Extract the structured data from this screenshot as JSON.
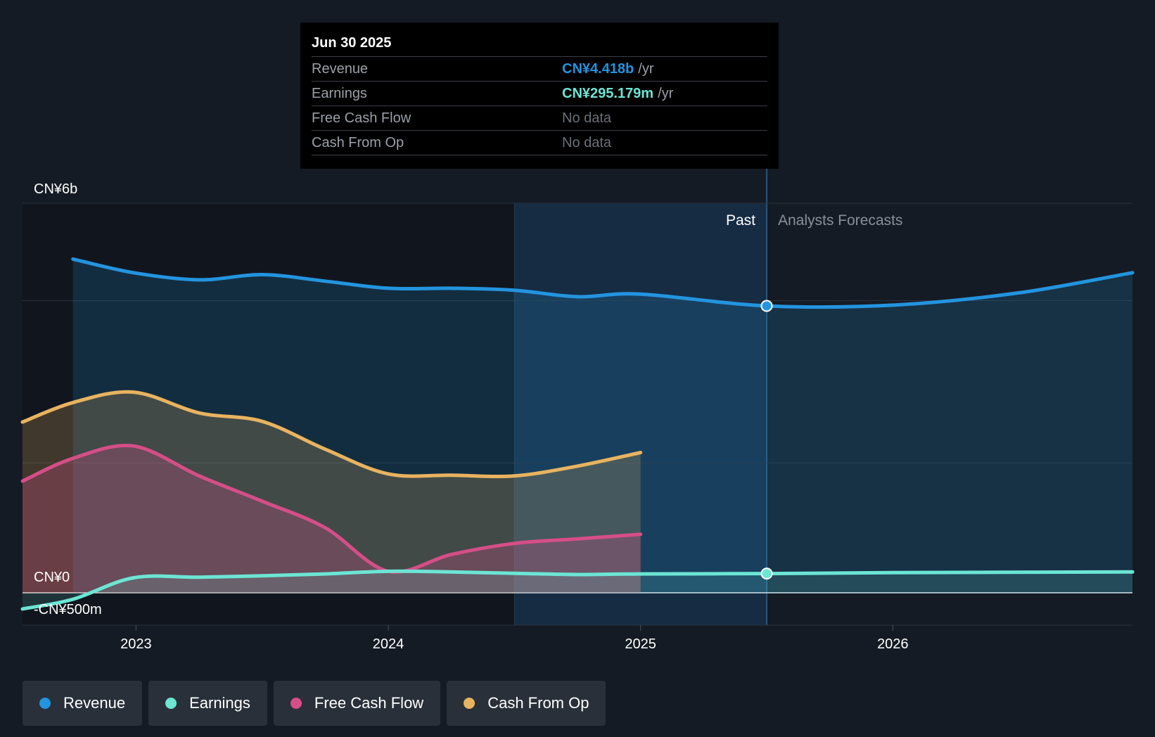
{
  "tooltip": {
    "date": "Jun 30 2025",
    "rows": [
      {
        "label": "Revenue",
        "value": "CN¥4.418b",
        "unit": "/yr",
        "color": "#2394df"
      },
      {
        "label": "Earnings",
        "value": "CN¥295.179m",
        "unit": "/yr",
        "color": "#6ce5d4"
      },
      {
        "label": "Free Cash Flow",
        "value": "No data",
        "unit": "",
        "color": "#6b7078"
      },
      {
        "label": "Cash From Op",
        "value": "No data",
        "unit": "",
        "color": "#6b7078"
      }
    ]
  },
  "legend": [
    {
      "label": "Revenue",
      "color": "#2394df"
    },
    {
      "label": "Earnings",
      "color": "#6ce5d4"
    },
    {
      "label": "Free Cash Flow",
      "color": "#d54e87"
    },
    {
      "label": "Cash From Op",
      "color": "#e8b35f"
    }
  ],
  "chart_data": {
    "type": "area",
    "title": "",
    "y_unit": "CN¥",
    "ylim": [
      -500,
      6000
    ],
    "y_tick_labels": [
      {
        "value": 6000,
        "label": "CN¥6b"
      },
      {
        "value": 0,
        "label": "CN¥0"
      },
      {
        "value": -500,
        "label": "-CN¥500m"
      }
    ],
    "y_gridlines": [
      6000,
      4500,
      2000,
      0,
      -500
    ],
    "xlim": [
      2022.55,
      2026.95
    ],
    "x_ticks": [
      {
        "value": 2023,
        "label": "2023"
      },
      {
        "value": 2024,
        "label": "2024"
      },
      {
        "value": 2025,
        "label": "2025"
      },
      {
        "value": 2026,
        "label": "2026"
      }
    ],
    "past_label": "Past",
    "forecast_label": "Analysts Forecasts",
    "divider_x": 2025.5,
    "highlight_start_x": 2024.5,
    "series": [
      {
        "name": "Revenue",
        "color": "#2394df",
        "points": [
          [
            2022.75,
            5140
          ],
          [
            2022.99,
            4930
          ],
          [
            2023.25,
            4820
          ],
          [
            2023.5,
            4900
          ],
          [
            2023.75,
            4800
          ],
          [
            2024.0,
            4690
          ],
          [
            2024.25,
            4690
          ],
          [
            2024.5,
            4660
          ],
          [
            2024.75,
            4560
          ],
          [
            2025.0,
            4600
          ],
          [
            2025.5,
            4418
          ]
        ],
        "forecast": [
          [
            2025.5,
            4418
          ],
          [
            2026.0,
            4430
          ],
          [
            2026.5,
            4620
          ],
          [
            2026.95,
            4930
          ]
        ]
      },
      {
        "name": "Earnings",
        "color": "#6ce5d4",
        "points": [
          [
            2022.55,
            -250
          ],
          [
            2022.75,
            -100
          ],
          [
            2022.99,
            230
          ],
          [
            2023.25,
            240
          ],
          [
            2023.5,
            260
          ],
          [
            2023.75,
            290
          ],
          [
            2024.0,
            330
          ],
          [
            2024.25,
            320
          ],
          [
            2024.5,
            300
          ],
          [
            2024.75,
            280
          ],
          [
            2025.0,
            290
          ],
          [
            2025.5,
            295
          ]
        ],
        "forecast": [
          [
            2025.5,
            295
          ],
          [
            2026.0,
            310
          ],
          [
            2026.95,
            320
          ]
        ]
      },
      {
        "name": "Free Cash Flow",
        "color": "#d54e87",
        "points": [
          [
            2022.55,
            1720
          ],
          [
            2022.75,
            2070
          ],
          [
            2022.99,
            2260
          ],
          [
            2023.25,
            1800
          ],
          [
            2023.5,
            1410
          ],
          [
            2023.75,
            1000
          ],
          [
            2024.0,
            330
          ],
          [
            2024.25,
            590
          ],
          [
            2024.5,
            760
          ],
          [
            2024.75,
            830
          ],
          [
            2025.0,
            900
          ]
        ],
        "forecast": []
      },
      {
        "name": "Cash From Op",
        "color": "#e8b35f",
        "points": [
          [
            2022.55,
            2630
          ],
          [
            2022.75,
            2930
          ],
          [
            2022.99,
            3090
          ],
          [
            2023.25,
            2770
          ],
          [
            2023.5,
            2640
          ],
          [
            2023.75,
            2210
          ],
          [
            2024.0,
            1830
          ],
          [
            2024.25,
            1810
          ],
          [
            2024.5,
            1800
          ],
          [
            2024.75,
            1950
          ],
          [
            2025.0,
            2160
          ]
        ],
        "forecast": []
      }
    ]
  }
}
